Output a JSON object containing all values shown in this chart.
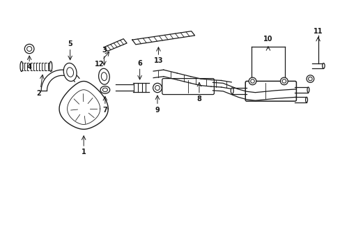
{
  "background_color": "#ffffff",
  "line_color": "#1a1a1a",
  "figsize": [
    4.89,
    3.6
  ],
  "dpi": 100,
  "xlim": [
    0,
    10
  ],
  "ylim": [
    0,
    7.5
  ]
}
